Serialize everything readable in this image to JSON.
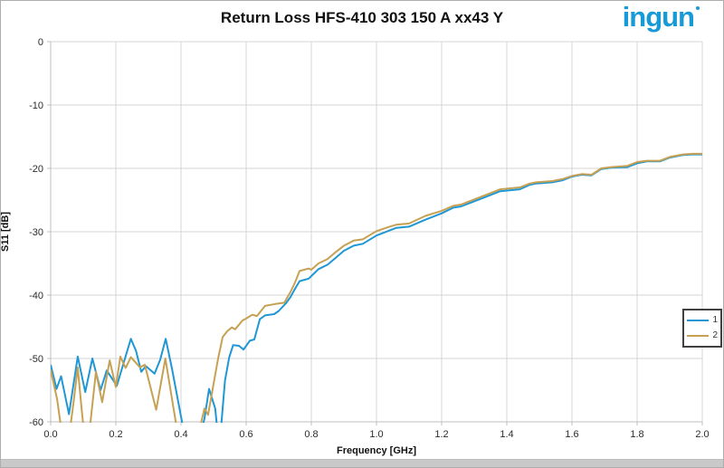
{
  "header": {
    "logo_text": "ingun",
    "logo_color": "#189ad6"
  },
  "chart_data": {
    "type": "line",
    "title": "Return Loss HFS-410 303 150 A xx43 Y",
    "xlabel": "Frequency [GHz]",
    "ylabel": "S11 [dB]",
    "xlim": [
      0.0,
      2.0
    ],
    "ylim": [
      -60,
      0
    ],
    "grid": true,
    "grid_color": "#d6d6d6",
    "axis_color": "#bfbfbf",
    "x_ticks": [
      "0.0",
      "0.2",
      "0.4",
      "0.6",
      "0.8",
      "1.0",
      "1.2",
      "1.4",
      "1.6",
      "1.8",
      "2.0"
    ],
    "y_ticks": [
      "0",
      "-10",
      "-20",
      "-30",
      "-40",
      "-50",
      "-60"
    ],
    "legend": {
      "position": "right-middle",
      "entries": [
        {
          "label": "1",
          "color": "#1f97d4"
        },
        {
          "label": "2",
          "color": "#c6a154"
        }
      ]
    },
    "series": [
      {
        "name": "1",
        "color": "#1f97d4",
        "points": [
          [
            0.0,
            -51.0
          ],
          [
            0.018,
            -54.8
          ],
          [
            0.032,
            -52.8
          ],
          [
            0.056,
            -58.8
          ],
          [
            0.083,
            -49.7
          ],
          [
            0.106,
            -55.3
          ],
          [
            0.128,
            -50.0
          ],
          [
            0.153,
            -55.0
          ],
          [
            0.172,
            -51.9
          ],
          [
            0.203,
            -54.3
          ],
          [
            0.228,
            -50.0
          ],
          [
            0.246,
            -46.9
          ],
          [
            0.262,
            -48.8
          ],
          [
            0.278,
            -52.1
          ],
          [
            0.292,
            -51.2
          ],
          [
            0.319,
            -52.4
          ],
          [
            0.336,
            -50.2
          ],
          [
            0.353,
            -46.9
          ],
          [
            0.372,
            -51.5
          ],
          [
            0.403,
            -60.0
          ],
          [
            0.415,
            -63.0
          ],
          [
            0.455,
            -63.0
          ],
          [
            0.472,
            -59.5
          ],
          [
            0.486,
            -54.8
          ],
          [
            0.505,
            -57.9
          ],
          [
            0.512,
            -61.5
          ],
          [
            0.522,
            -61.5
          ],
          [
            0.535,
            -53.5
          ],
          [
            0.548,
            -49.8
          ],
          [
            0.56,
            -47.9
          ],
          [
            0.578,
            -48.0
          ],
          [
            0.592,
            -48.6
          ],
          [
            0.611,
            -47.2
          ],
          [
            0.625,
            -47.0
          ],
          [
            0.642,
            -43.8
          ],
          [
            0.658,
            -43.2
          ],
          [
            0.686,
            -43.0
          ],
          [
            0.7,
            -42.5
          ],
          [
            0.722,
            -41.3
          ],
          [
            0.736,
            -40.3
          ],
          [
            0.75,
            -39.0
          ],
          [
            0.764,
            -37.8
          ],
          [
            0.792,
            -37.4
          ],
          [
            0.8,
            -37.0
          ],
          [
            0.822,
            -35.9
          ],
          [
            0.85,
            -35.2
          ],
          [
            0.875,
            -34.1
          ],
          [
            0.9,
            -33.0
          ],
          [
            0.93,
            -32.2
          ],
          [
            0.958,
            -31.9
          ],
          [
            1.0,
            -30.6
          ],
          [
            1.04,
            -29.8
          ],
          [
            1.06,
            -29.4
          ],
          [
            1.1,
            -29.2
          ],
          [
            1.15,
            -28.1
          ],
          [
            1.2,
            -27.1
          ],
          [
            1.236,
            -26.2
          ],
          [
            1.26,
            -26.0
          ],
          [
            1.29,
            -25.4
          ],
          [
            1.35,
            -24.2
          ],
          [
            1.38,
            -23.6
          ],
          [
            1.44,
            -23.3
          ],
          [
            1.47,
            -22.6
          ],
          [
            1.49,
            -22.4
          ],
          [
            1.54,
            -22.2
          ],
          [
            1.57,
            -21.9
          ],
          [
            1.6,
            -21.3
          ],
          [
            1.63,
            -21.0
          ],
          [
            1.66,
            -21.1
          ],
          [
            1.69,
            -20.1
          ],
          [
            1.72,
            -19.9
          ],
          [
            1.77,
            -19.8
          ],
          [
            1.8,
            -19.2
          ],
          [
            1.83,
            -18.9
          ],
          [
            1.87,
            -18.9
          ],
          [
            1.9,
            -18.3
          ],
          [
            1.94,
            -17.9
          ],
          [
            1.97,
            -17.8
          ],
          [
            2.0,
            -17.8
          ]
        ]
      },
      {
        "name": "2",
        "color": "#c6a154",
        "points": [
          [
            0.0,
            -51.8
          ],
          [
            0.02,
            -56.5
          ],
          [
            0.036,
            -62.5
          ],
          [
            0.056,
            -62.5
          ],
          [
            0.07,
            -57.0
          ],
          [
            0.083,
            -51.4
          ],
          [
            0.095,
            -58.0
          ],
          [
            0.104,
            -62.5
          ],
          [
            0.117,
            -62.5
          ],
          [
            0.139,
            -52.1
          ],
          [
            0.158,
            -56.9
          ],
          [
            0.181,
            -50.3
          ],
          [
            0.2,
            -54.5
          ],
          [
            0.214,
            -49.7
          ],
          [
            0.23,
            -51.5
          ],
          [
            0.246,
            -49.8
          ],
          [
            0.274,
            -51.4
          ],
          [
            0.289,
            -51.0
          ],
          [
            0.324,
            -58.1
          ],
          [
            0.352,
            -50.0
          ],
          [
            0.384,
            -60.0
          ],
          [
            0.395,
            -63.0
          ],
          [
            0.45,
            -63.0
          ],
          [
            0.46,
            -60.5
          ],
          [
            0.472,
            -57.9
          ],
          [
            0.483,
            -58.9
          ],
          [
            0.514,
            -50.0
          ],
          [
            0.528,
            -46.6
          ],
          [
            0.542,
            -45.7
          ],
          [
            0.556,
            -45.1
          ],
          [
            0.566,
            -45.4
          ],
          [
            0.589,
            -44.0
          ],
          [
            0.6,
            -43.7
          ],
          [
            0.619,
            -43.1
          ],
          [
            0.633,
            -43.3
          ],
          [
            0.658,
            -41.7
          ],
          [
            0.69,
            -41.4
          ],
          [
            0.717,
            -41.2
          ],
          [
            0.736,
            -39.5
          ],
          [
            0.75,
            -38.0
          ],
          [
            0.764,
            -36.2
          ],
          [
            0.792,
            -35.8
          ],
          [
            0.8,
            -36.0
          ],
          [
            0.822,
            -35.0
          ],
          [
            0.85,
            -34.3
          ],
          [
            0.875,
            -33.2
          ],
          [
            0.9,
            -32.2
          ],
          [
            0.93,
            -31.4
          ],
          [
            0.958,
            -31.2
          ],
          [
            1.0,
            -29.9
          ],
          [
            1.04,
            -29.2
          ],
          [
            1.06,
            -28.9
          ],
          [
            1.1,
            -28.7
          ],
          [
            1.15,
            -27.5
          ],
          [
            1.2,
            -26.7
          ],
          [
            1.236,
            -25.9
          ],
          [
            1.26,
            -25.7
          ],
          [
            1.29,
            -25.1
          ],
          [
            1.35,
            -23.9
          ],
          [
            1.38,
            -23.3
          ],
          [
            1.44,
            -23.0
          ],
          [
            1.47,
            -22.4
          ],
          [
            1.49,
            -22.2
          ],
          [
            1.54,
            -22.0
          ],
          [
            1.57,
            -21.7
          ],
          [
            1.6,
            -21.2
          ],
          [
            1.63,
            -20.9
          ],
          [
            1.66,
            -21.0
          ],
          [
            1.69,
            -20.0
          ],
          [
            1.72,
            -19.8
          ],
          [
            1.77,
            -19.6
          ],
          [
            1.8,
            -19.0
          ],
          [
            1.83,
            -18.8
          ],
          [
            1.87,
            -18.8
          ],
          [
            1.9,
            -18.2
          ],
          [
            1.94,
            -17.8
          ],
          [
            1.97,
            -17.7
          ],
          [
            2.0,
            -17.7
          ]
        ]
      }
    ]
  }
}
